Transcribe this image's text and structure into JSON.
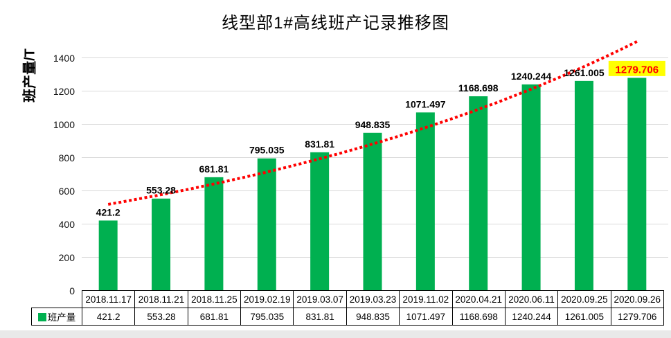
{
  "title": "线型部1#高线班产记录推移图",
  "y_axis_title": "班产量/T",
  "legend_label": "班产量",
  "colors": {
    "bar": "#00B050",
    "trend_line": "#FF0000",
    "grid_line": "#D9D9D9",
    "table_border": "#000000",
    "highlight_bg": "#FFFF00",
    "highlight_text": "#FF0000",
    "label_text": "#000000"
  },
  "chart_data": {
    "type": "bar",
    "title": "线型部1#高线班产记录推移图",
    "xlabel": "",
    "ylabel": "班产量/T",
    "categories": [
      "2018.11.17",
      "2018.11.21",
      "2018.11.25",
      "2019.02.19",
      "2019.03.07",
      "2019.03.23",
      "2019.11.02",
      "2020.04.21",
      "2020.06.11",
      "2020.09.25",
      "2020.09.26"
    ],
    "series": [
      {
        "name": "班产量",
        "values": [
          421.2,
          553.28,
          681.81,
          795.035,
          831.81,
          948.835,
          1071.497,
          1168.698,
          1240.244,
          1261.005,
          1279.706
        ]
      }
    ],
    "ylim": [
      0,
      1500
    ],
    "y_ticks": [
      0,
      200,
      400,
      600,
      800,
      1000,
      1200,
      1400
    ],
    "grid": true,
    "data_table": true,
    "legend_position": "data-table-left",
    "data_labels": true,
    "trendline": {
      "series": "班产量",
      "type": "exponential",
      "style": "dotted",
      "color": "#FF0000"
    },
    "highlight": {
      "category": "2020.09.26",
      "value": 1279.706,
      "label_bg": "#FFFF00",
      "label_color": "#FF0000"
    }
  }
}
